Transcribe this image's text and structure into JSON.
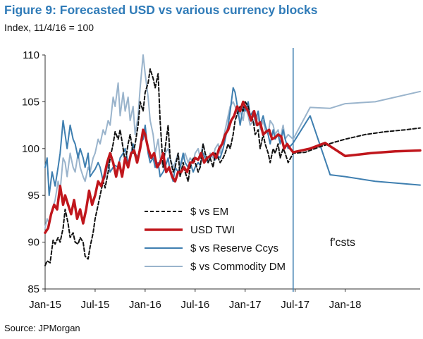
{
  "title": "Figure 9: Forecasted USD vs various currency blocks",
  "subtitle": "Index, 11/4/16 = 100",
  "source": "Source: JPMorgan",
  "forecast_label": "f'csts",
  "colors": {
    "title": "#2f7bb8",
    "em": "#111111",
    "twi": "#c0161c",
    "reserve": "#3f7fb0",
    "commodity": "#9ab4cc",
    "divider": "#3f7fb0"
  },
  "chart_data": {
    "type": "line",
    "title": "Figure 9: Forecasted USD vs various currency blocks",
    "ylabel": "",
    "xlabel": "",
    "xlim": [
      2015.0,
      2018.75
    ],
    "ylim": [
      85,
      110
    ],
    "yticks": [
      85,
      90,
      95,
      100,
      105,
      110
    ],
    "xticks": [
      {
        "label": "Jan-15",
        "x": 2015.0
      },
      {
        "label": "Jul-15",
        "x": 2015.5
      },
      {
        "label": "Jan-16",
        "x": 2016.0
      },
      {
        "label": "Jul-16",
        "x": 2016.5
      },
      {
        "label": "Jan-17",
        "x": 2017.0
      },
      {
        "label": "Jul-17",
        "x": 2017.5
      },
      {
        "label": "Jan-18",
        "x": 2018.0
      }
    ],
    "forecast_start": 2017.48,
    "legend_position": "center-left",
    "series": [
      {
        "name": "$ vs EM",
        "key": "em",
        "dash": true,
        "width": 2,
        "x": [
          2015.0,
          2015.02,
          2015.05,
          2015.08,
          2015.1,
          2015.13,
          2015.15,
          2015.18,
          2015.2,
          2015.23,
          2015.25,
          2015.28,
          2015.3,
          2015.33,
          2015.35,
          2015.38,
          2015.4,
          2015.43,
          2015.45,
          2015.48,
          2015.5,
          2015.52,
          2015.55,
          2015.58,
          2015.6,
          2015.63,
          2015.65,
          2015.68,
          2015.7,
          2015.73,
          2015.75,
          2015.78,
          2015.8,
          2015.83,
          2015.85,
          2015.88,
          2015.9,
          2015.93,
          2015.95,
          2015.98,
          2016.0,
          2016.03,
          2016.05,
          2016.08,
          2016.1,
          2016.13,
          2016.15,
          2016.18,
          2016.2,
          2016.23,
          2016.25,
          2016.28,
          2016.3,
          2016.33,
          2016.35,
          2016.38,
          2016.4,
          2016.43,
          2016.45,
          2016.48,
          2016.5,
          2016.53,
          2016.55,
          2016.58,
          2016.6,
          2016.63,
          2016.65,
          2016.68,
          2016.7,
          2016.73,
          2016.75,
          2016.78,
          2016.8,
          2016.83,
          2016.85,
          2016.88,
          2016.9,
          2016.93,
          2016.95,
          2016.98,
          2017.0,
          2017.03,
          2017.05,
          2017.08,
          2017.1,
          2017.13,
          2017.15,
          2017.18,
          2017.2,
          2017.23,
          2017.25,
          2017.28,
          2017.3,
          2017.33,
          2017.35,
          2017.38,
          2017.4,
          2017.43,
          2017.48,
          2017.6,
          2017.75,
          2017.9,
          2018.0,
          2018.2,
          2018.4,
          2018.6,
          2018.75
        ],
        "y": [
          87.5,
          88.0,
          87.8,
          90.2,
          89.8,
          90.5,
          90.0,
          91.5,
          93.5,
          92.0,
          90.5,
          91.0,
          90.0,
          89.8,
          90.5,
          90.0,
          88.5,
          88.2,
          89.5,
          91.0,
          92.5,
          93.5,
          95.0,
          96.5,
          95.8,
          97.5,
          99.0,
          100.5,
          101.8,
          101.0,
          102.0,
          100.0,
          98.5,
          100.5,
          101.5,
          99.5,
          100.5,
          102.5,
          105.0,
          104.0,
          106.0,
          107.0,
          108.5,
          107.5,
          106.5,
          108.0,
          103.0,
          98.0,
          100.0,
          102.5,
          99.0,
          97.5,
          98.0,
          99.5,
          97.0,
          98.5,
          97.5,
          96.5,
          98.0,
          99.0,
          98.5,
          97.5,
          98.0,
          100.5,
          99.5,
          98.5,
          99.0,
          98.0,
          99.5,
          99.0,
          98.5,
          99.0,
          99.5,
          100.5,
          100.0,
          101.5,
          103.0,
          104.0,
          104.5,
          104.0,
          105.0,
          104.5,
          103.5,
          103.0,
          101.5,
          102.0,
          100.0,
          101.5,
          100.5,
          99.5,
          98.5,
          100.0,
          99.5,
          100.5,
          99.0,
          100.0,
          99.5,
          98.5,
          99.5,
          99.6,
          100.2,
          100.7,
          101.0,
          101.5,
          101.8,
          102.0,
          102.2
        ]
      },
      {
        "name": "USD TWI",
        "key": "twi",
        "dash": false,
        "width": 3.5,
        "x": [
          2015.0,
          2015.03,
          2015.06,
          2015.09,
          2015.12,
          2015.15,
          2015.18,
          2015.2,
          2015.23,
          2015.26,
          2015.29,
          2015.32,
          2015.35,
          2015.38,
          2015.41,
          2015.44,
          2015.47,
          2015.5,
          2015.53,
          2015.56,
          2015.59,
          2015.62,
          2015.65,
          2015.68,
          2015.71,
          2015.74,
          2015.77,
          2015.8,
          2015.83,
          2015.86,
          2015.89,
          2015.92,
          2015.95,
          2015.98,
          2016.0,
          2016.03,
          2016.06,
          2016.09,
          2016.12,
          2016.15,
          2016.18,
          2016.21,
          2016.24,
          2016.27,
          2016.3,
          2016.33,
          2016.36,
          2016.39,
          2016.42,
          2016.45,
          2016.48,
          2016.5,
          2016.53,
          2016.56,
          2016.59,
          2016.62,
          2016.65,
          2016.68,
          2016.71,
          2016.74,
          2016.77,
          2016.8,
          2016.83,
          2016.86,
          2016.89,
          2016.92,
          2016.95,
          2016.98,
          2017.0,
          2017.03,
          2017.06,
          2017.09,
          2017.12,
          2017.15,
          2017.18,
          2017.21,
          2017.24,
          2017.27,
          2017.3,
          2017.33,
          2017.36,
          2017.39,
          2017.42,
          2017.45,
          2017.48,
          2017.65,
          2017.8,
          2018.0,
          2018.25,
          2018.5,
          2018.75
        ],
        "y": [
          91.0,
          91.5,
          93.0,
          94.0,
          93.5,
          96.0,
          94.0,
          95.0,
          94.0,
          93.0,
          94.5,
          92.5,
          93.5,
          92.0,
          93.5,
          95.5,
          94.0,
          95.0,
          96.5,
          96.0,
          97.0,
          98.5,
          99.5,
          98.5,
          97.0,
          98.5,
          97.0,
          99.0,
          98.0,
          99.5,
          99.8,
          98.5,
          100.0,
          102.0,
          101.5,
          100.0,
          99.0,
          99.5,
          98.0,
          98.5,
          99.5,
          97.5,
          98.0,
          97.0,
          96.5,
          97.5,
          97.5,
          98.0,
          97.5,
          98.5,
          98.5,
          99.0,
          98.8,
          99.5,
          98.5,
          99.0,
          99.2,
          99.5,
          99.0,
          100.0,
          100.5,
          101.5,
          102.0,
          103.0,
          103.5,
          104.5,
          104.0,
          105.0,
          104.5,
          104.0,
          103.0,
          104.0,
          102.5,
          102.8,
          101.5,
          101.8,
          102.0,
          101.0,
          101.2,
          101.5,
          101.3,
          100.0,
          100.5,
          100.0,
          99.6,
          100.0,
          100.6,
          99.2,
          99.5,
          99.7,
          99.8
        ]
      },
      {
        "name": "$ vs Reserve Ccys",
        "key": "reserve",
        "dash": false,
        "width": 2,
        "x": [
          2015.0,
          2015.02,
          2015.04,
          2015.07,
          2015.1,
          2015.13,
          2015.15,
          2015.18,
          2015.2,
          2015.22,
          2015.25,
          2015.28,
          2015.3,
          2015.33,
          2015.35,
          2015.38,
          2015.4,
          2015.43,
          2015.45,
          2015.48,
          2015.5,
          2015.53,
          2015.55,
          2015.58,
          2015.6,
          2015.63,
          2015.65,
          2015.68,
          2015.7,
          2015.73,
          2015.75,
          2015.78,
          2015.8,
          2015.83,
          2015.85,
          2015.88,
          2015.9,
          2015.93,
          2015.95,
          2015.98,
          2016.0,
          2016.03,
          2016.05,
          2016.08,
          2016.1,
          2016.13,
          2016.15,
          2016.18,
          2016.2,
          2016.23,
          2016.25,
          2016.28,
          2016.3,
          2016.33,
          2016.35,
          2016.38,
          2016.4,
          2016.43,
          2016.45,
          2016.48,
          2016.5,
          2016.53,
          2016.55,
          2016.58,
          2016.6,
          2016.63,
          2016.65,
          2016.68,
          2016.7,
          2016.73,
          2016.75,
          2016.78,
          2016.8,
          2016.83,
          2016.85,
          2016.88,
          2016.9,
          2016.93,
          2016.95,
          2016.98,
          2017.0,
          2017.03,
          2017.05,
          2017.08,
          2017.1,
          2017.13,
          2017.15,
          2017.18,
          2017.2,
          2017.23,
          2017.25,
          2017.28,
          2017.3,
          2017.33,
          2017.35,
          2017.38,
          2017.4,
          2017.43,
          2017.48,
          2017.65,
          2017.85,
          2018.0,
          2018.3,
          2018.75
        ],
        "y": [
          98.0,
          99.0,
          95.0,
          97.5,
          96.0,
          98.0,
          99.5,
          103.0,
          101.5,
          100.0,
          102.5,
          101.0,
          100.5,
          99.0,
          100.0,
          99.0,
          98.0,
          99.5,
          97.0,
          97.5,
          97.8,
          98.5,
          98.0,
          96.5,
          97.0,
          98.5,
          97.5,
          98.0,
          98.2,
          98.0,
          99.0,
          99.5,
          100.0,
          98.5,
          99.0,
          100.5,
          99.5,
          99.0,
          100.5,
          101.0,
          102.5,
          99.5,
          98.5,
          99.0,
          98.0,
          98.5,
          97.0,
          97.5,
          98.0,
          99.0,
          97.5,
          96.5,
          98.0,
          97.5,
          98.0,
          99.5,
          98.5,
          98.0,
          98.5,
          97.5,
          98.0,
          98.5,
          98.2,
          99.5,
          99.0,
          98.5,
          99.0,
          99.5,
          98.8,
          99.2,
          99.0,
          100.0,
          101.0,
          102.5,
          104.0,
          106.5,
          106.0,
          104.0,
          102.5,
          104.5,
          104.0,
          105.0,
          103.5,
          104.0,
          103.0,
          104.0,
          102.5,
          103.5,
          102.5,
          101.5,
          100.5,
          102.0,
          101.0,
          101.5,
          100.5,
          102.0,
          101.0,
          100.0,
          100.6,
          103.5,
          97.2,
          97.0,
          96.5,
          96.1
        ]
      },
      {
        "name": "$ vs Commodity DM",
        "key": "commodity",
        "dash": false,
        "width": 2,
        "x": [
          2015.0,
          2015.02,
          2015.04,
          2015.07,
          2015.1,
          2015.13,
          2015.15,
          2015.18,
          2015.2,
          2015.22,
          2015.25,
          2015.28,
          2015.3,
          2015.33,
          2015.35,
          2015.38,
          2015.4,
          2015.43,
          2015.45,
          2015.48,
          2015.5,
          2015.53,
          2015.55,
          2015.58,
          2015.6,
          2015.63,
          2015.65,
          2015.68,
          2015.7,
          2015.73,
          2015.75,
          2015.78,
          2015.8,
          2015.83,
          2015.85,
          2015.88,
          2015.9,
          2015.93,
          2015.95,
          2015.98,
          2016.0,
          2016.03,
          2016.05,
          2016.08,
          2016.1,
          2016.13,
          2016.15,
          2016.18,
          2016.2,
          2016.23,
          2016.25,
          2016.28,
          2016.3,
          2016.33,
          2016.35,
          2016.38,
          2016.4,
          2016.43,
          2016.45,
          2016.48,
          2016.5,
          2016.53,
          2016.55,
          2016.58,
          2016.6,
          2016.63,
          2016.65,
          2016.68,
          2016.7,
          2016.73,
          2016.75,
          2016.78,
          2016.8,
          2016.83,
          2016.85,
          2016.88,
          2016.9,
          2016.93,
          2016.95,
          2016.98,
          2017.0,
          2017.03,
          2017.05,
          2017.08,
          2017.1,
          2017.13,
          2017.15,
          2017.18,
          2017.2,
          2017.23,
          2017.25,
          2017.28,
          2017.3,
          2017.33,
          2017.35,
          2017.38,
          2017.4,
          2017.43,
          2017.48,
          2017.65,
          2017.85,
          2018.0,
          2018.3,
          2018.75
        ],
        "y": [
          91.5,
          92.5,
          92.0,
          93.5,
          94.5,
          96.5,
          95.5,
          99.0,
          98.5,
          97.0,
          99.5,
          98.0,
          97.5,
          99.5,
          98.0,
          97.0,
          96.5,
          98.0,
          97.5,
          99.0,
          99.5,
          101.0,
          100.5,
          102.0,
          101.5,
          103.0,
          102.5,
          105.5,
          104.5,
          107.0,
          103.5,
          106.0,
          104.0,
          105.5,
          103.0,
          104.5,
          101.5,
          103.5,
          106.5,
          110.0,
          108.0,
          105.5,
          103.0,
          101.5,
          99.5,
          101.0,
          99.0,
          98.0,
          99.5,
          100.0,
          99.0,
          98.0,
          98.5,
          99.5,
          98.0,
          99.0,
          99.5,
          98.5,
          99.0,
          98.5,
          99.5,
          100.0,
          99.0,
          100.5,
          99.5,
          98.5,
          99.5,
          99.0,
          100.0,
          100.5,
          99.5,
          101.0,
          102.0,
          103.5,
          104.5,
          105.0,
          104.5,
          103.5,
          104.0,
          103.0,
          104.5,
          103.5,
          102.5,
          103.0,
          102.5,
          103.5,
          102.0,
          103.0,
          102.0,
          101.5,
          103.0,
          102.5,
          101.5,
          102.0,
          101.0,
          102.5,
          101.0,
          101.5,
          101.0,
          104.4,
          104.3,
          104.8,
          105.0,
          106.1
        ]
      }
    ]
  }
}
